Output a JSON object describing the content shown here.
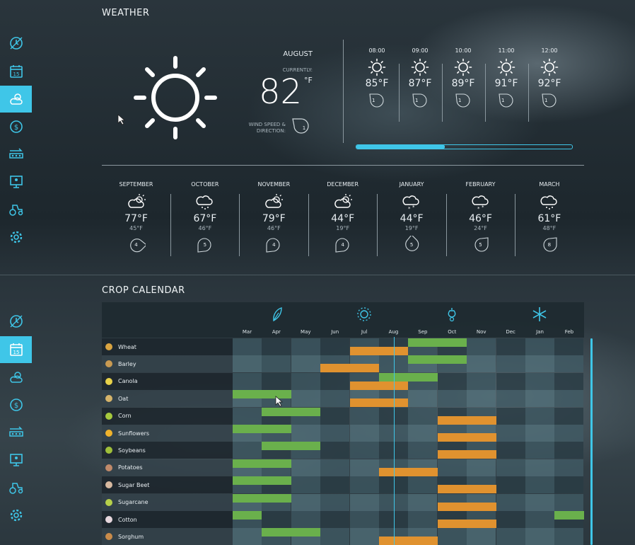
{
  "weather": {
    "title": "WEATHER",
    "current": {
      "month": "AUGUST",
      "label": "CURRENTLY:",
      "temp": "82",
      "unit": "°F",
      "wind_label": "WIND SPEED & DIRECTION:",
      "wind": "1"
    },
    "hourly": [
      {
        "time": "08:00",
        "temp": "85°F",
        "wind": "1"
      },
      {
        "time": "09:00",
        "temp": "87°F",
        "wind": "1"
      },
      {
        "time": "10:00",
        "temp": "89°F",
        "wind": "1"
      },
      {
        "time": "11:00",
        "temp": "91°F",
        "wind": "1"
      },
      {
        "time": "12:00",
        "temp": "92°F",
        "wind": "1"
      }
    ],
    "hourly_progress": 0.41,
    "monthly": [
      {
        "month": "SEPTEMBER",
        "icon": "partly-cloudy-icon",
        "hi": "77°F",
        "lo": "45°F",
        "wind": "4"
      },
      {
        "month": "OCTOBER",
        "icon": "rain-icon",
        "hi": "67°F",
        "lo": "46°F",
        "wind": "5"
      },
      {
        "month": "NOVEMBER",
        "icon": "partly-cloudy-icon",
        "hi": "79°F",
        "lo": "46°F",
        "wind": "4"
      },
      {
        "month": "DECEMBER",
        "icon": "partly-cloudy-icon",
        "hi": "44°F",
        "lo": "19°F",
        "wind": "4"
      },
      {
        "month": "JANUARY",
        "icon": "snow-icon",
        "hi": "44°F",
        "lo": "19°F",
        "wind": "5"
      },
      {
        "month": "FEBRUARY",
        "icon": "snow-icon",
        "hi": "46°F",
        "lo": "24°F",
        "wind": "5"
      },
      {
        "month": "MARCH",
        "icon": "rain-icon",
        "hi": "61°F",
        "lo": "48°F",
        "wind": "8"
      }
    ]
  },
  "calendar": {
    "title": "CROP CALENDAR",
    "months": [
      "Mar",
      "Apr",
      "May",
      "Jun",
      "Jul",
      "Aug",
      "Sep",
      "Oct",
      "Nov",
      "Dec",
      "Jan",
      "Feb"
    ],
    "seasons": [
      "spring-leaf-icon",
      "summer-sun-icon",
      "autumn-icon",
      "winter-snowflake-icon"
    ],
    "colors": {
      "plant": "#6ab04c",
      "harvest": "#e0922f",
      "accent": "#3fc6e8"
    },
    "crops": [
      {
        "name": "Wheat",
        "icon_color": "#d9a441",
        "plant": [
          [
            6,
            8
          ]
        ],
        "harvest": [
          [
            4,
            6
          ]
        ]
      },
      {
        "name": "Barley",
        "icon_color": "#c99a52",
        "plant": [
          [
            6,
            8
          ]
        ],
        "harvest": [
          [
            3,
            5
          ]
        ]
      },
      {
        "name": "Canola",
        "icon_color": "#e8d24a",
        "plant": [
          [
            5,
            7
          ]
        ],
        "harvest": [
          [
            4,
            6
          ]
        ]
      },
      {
        "name": "Oat",
        "icon_color": "#d6b46a",
        "plant": [
          [
            0,
            2
          ]
        ],
        "harvest": [
          [
            4,
            6
          ]
        ]
      },
      {
        "name": "Corn",
        "icon_color": "#a6c93e",
        "plant": [
          [
            1,
            3
          ]
        ],
        "harvest": [
          [
            7,
            9
          ]
        ]
      },
      {
        "name": "Sunflowers",
        "icon_color": "#f0b32c",
        "plant": [
          [
            0,
            2
          ]
        ],
        "harvest": [
          [
            7,
            9
          ]
        ]
      },
      {
        "name": "Soybeans",
        "icon_color": "#9fbf3a",
        "plant": [
          [
            1,
            3
          ]
        ],
        "harvest": [
          [
            7,
            9
          ]
        ]
      },
      {
        "name": "Potatoes",
        "icon_color": "#c08a6a",
        "plant": [
          [
            0,
            2
          ]
        ],
        "harvest": [
          [
            5,
            7
          ]
        ]
      },
      {
        "name": "Sugar Beet",
        "icon_color": "#d7b9a0",
        "plant": [
          [
            0,
            2
          ]
        ],
        "harvest": [
          [
            7,
            9
          ]
        ]
      },
      {
        "name": "Sugarcane",
        "icon_color": "#b7d04a",
        "plant": [
          [
            0,
            2
          ]
        ],
        "harvest": [
          [
            7,
            9
          ]
        ]
      },
      {
        "name": "Cotton",
        "icon_color": "#e6d7dd",
        "plant": [
          [
            0,
            1
          ],
          [
            11,
            12
          ]
        ],
        "harvest": [
          [
            7,
            9
          ]
        ]
      },
      {
        "name": "Sorghum",
        "icon_color": "#c98b4a",
        "plant": [
          [
            1,
            3
          ]
        ],
        "harvest": [
          [
            5,
            7
          ]
        ]
      }
    ]
  },
  "sidebar": {
    "items": [
      {
        "name": "sidebar-item-prices",
        "icon": "clock-money-icon"
      },
      {
        "name": "sidebar-item-calendar",
        "icon": "calendar-15-icon",
        "text": "15"
      },
      {
        "name": "sidebar-item-weather",
        "icon": "weather-icon"
      },
      {
        "name": "sidebar-item-finances",
        "icon": "dollar-icon"
      },
      {
        "name": "sidebar-item-production",
        "icon": "production-chain-icon"
      },
      {
        "name": "sidebar-item-statistics",
        "icon": "statistics-icon"
      },
      {
        "name": "sidebar-item-vehicles",
        "icon": "tractor-icon"
      },
      {
        "name": "sidebar-item-settings",
        "icon": "gear-icon"
      }
    ]
  }
}
